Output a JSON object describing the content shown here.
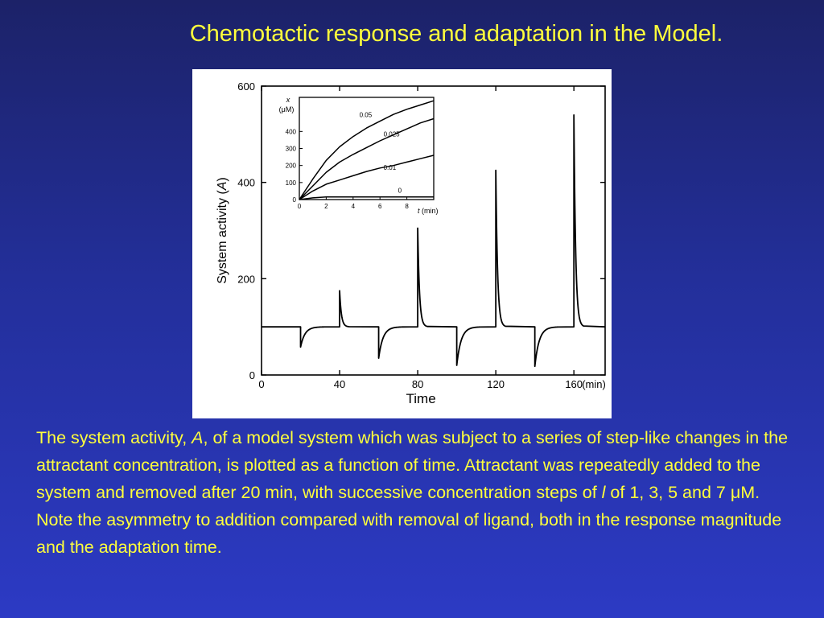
{
  "slide": {
    "title": "Chemotactic response and adaptation in the Model.",
    "caption": {
      "p1": "The system activity, ",
      "var_a": "A",
      "p2": ", of a model system which was subject to a series of step-like changes in the attractant concentration, is plotted as a function of time. Attractant was repeatedly added to the system and removed after 20 min, with successive concentration steps of ",
      "var_l": "l",
      "p3": " of 1, 3, 5 and 7 ",
      "mu": "μ",
      "p4": "M. Note the asymmetry to addition compared with removal of ligand, both in the response magnitude and the adaptation time."
    }
  },
  "colors": {
    "background_top": "#1c2268",
    "background_bottom": "#2c3ac4",
    "text": "#ffff3c",
    "figure_bg": "#ffffff",
    "ink": "#000000"
  },
  "chart_data": [
    {
      "type": "line",
      "title": "",
      "xlabel": "Time",
      "xunit": "(min)",
      "ylabel_prefix": "System activity (",
      "ylabel_var": "A",
      "ylabel_suffix": ")",
      "xlim": [
        0,
        176
      ],
      "ylim": [
        0,
        600
      ],
      "x_ticks": [
        0,
        40,
        80,
        120,
        160
      ],
      "y_ticks": [
        0,
        200,
        400,
        600
      ],
      "grid": false,
      "legend": "none",
      "baseline": 100,
      "steps": [
        {
          "time": 20,
          "event": "add",
          "value": 58
        },
        {
          "time": 40,
          "event": "remove",
          "value": 175
        },
        {
          "time": 60,
          "event": "add",
          "value": 35
        },
        {
          "time": 80,
          "event": "remove",
          "value": 305
        },
        {
          "time": 100,
          "event": "add",
          "value": 20
        },
        {
          "time": 120,
          "event": "remove",
          "value": 425
        },
        {
          "time": 140,
          "event": "add",
          "value": 18
        },
        {
          "time": 160,
          "event": "remove",
          "value": 540
        }
      ]
    },
    {
      "type": "line",
      "title": "",
      "xlabel_var": "t",
      "xlabel_unit": "(min)",
      "ylabel_var": "x",
      "ylabel_unit": "(μM)",
      "xlim": [
        0,
        10
      ],
      "ylim": [
        0,
        600
      ],
      "x_ticks": [
        0,
        2,
        4,
        6,
        8
      ],
      "y_ticks": [
        0,
        100,
        200,
        300,
        400
      ],
      "grid": false,
      "legend": "none",
      "x": [
        0,
        1,
        2,
        3,
        4,
        5,
        6,
        7,
        8,
        9,
        10
      ],
      "series": [
        {
          "name": "0.05",
          "values": [
            0,
            120,
            230,
            310,
            370,
            420,
            460,
            500,
            530,
            555,
            580
          ]
        },
        {
          "name": "0.025",
          "values": [
            0,
            80,
            160,
            220,
            265,
            305,
            345,
            380,
            415,
            450,
            475
          ]
        },
        {
          "name": "0.01",
          "values": [
            0,
            50,
            90,
            115,
            140,
            165,
            185,
            200,
            220,
            240,
            260
          ]
        },
        {
          "name": "0",
          "values": [
            0,
            10,
            15,
            15,
            15,
            15,
            15,
            15,
            15,
            15,
            15
          ]
        }
      ]
    }
  ]
}
